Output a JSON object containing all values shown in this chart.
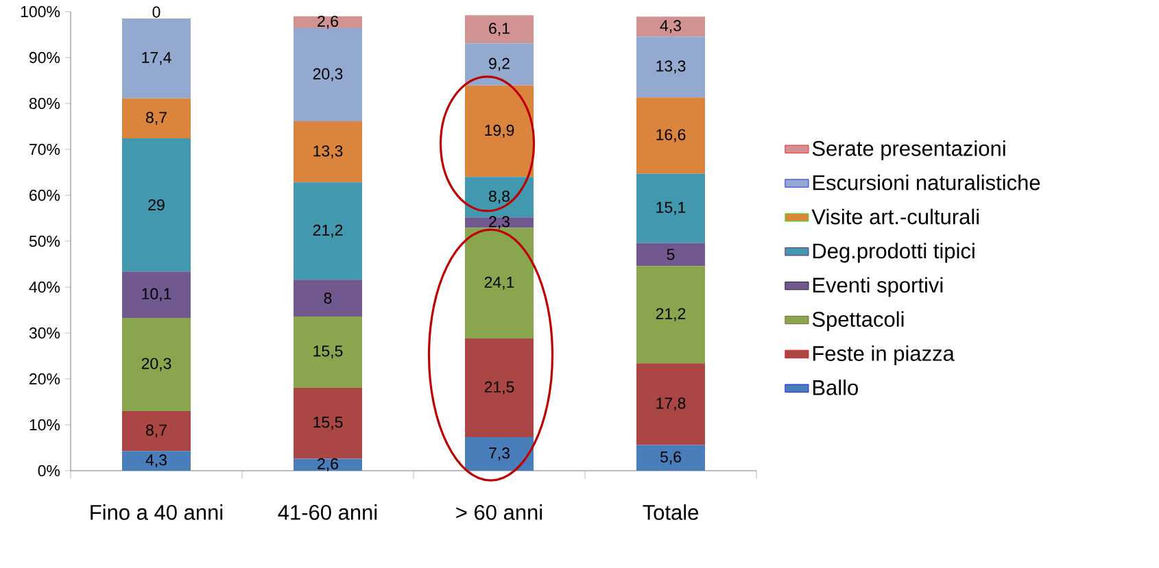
{
  "chart_data": {
    "type": "bar",
    "stacked": true,
    "categories": [
      "Fino a 40 anni",
      "41-60 anni",
      "> 60 anni",
      "Totale"
    ],
    "series": [
      {
        "name": "Ballo",
        "color": "#4a7ebb",
        "values": [
          4.3,
          2.6,
          7.3,
          5.6
        ],
        "value_labels": [
          "4,3",
          "2,6",
          "7,3",
          "5,6"
        ]
      },
      {
        "name": "Feste in piazza",
        "color": "#aa4643",
        "values": [
          8.7,
          15.5,
          21.5,
          17.8
        ],
        "value_labels": [
          "8,7",
          "15,5",
          "21,5",
          "17,8"
        ]
      },
      {
        "name": "Spettacoli",
        "color": "#89a54e",
        "values": [
          20.3,
          15.5,
          24.1,
          21.2
        ],
        "value_labels": [
          "20,3",
          "15,5",
          "24,1",
          "21,2"
        ]
      },
      {
        "name": "Eventi sportivi",
        "color": "#71588f",
        "values": [
          10.1,
          8,
          2.3,
          5
        ],
        "value_labels": [
          "10,1",
          "8",
          "2,3",
          "5"
        ]
      },
      {
        "name": "Deg.prodotti tipici",
        "color": "#4198af",
        "values": [
          29,
          21.2,
          8.8,
          15.1
        ],
        "value_labels": [
          "29",
          "21,2",
          "8,8",
          "15,1"
        ]
      },
      {
        "name": "Visite art.-culturali",
        "color": "#db843d",
        "values": [
          8.7,
          13.3,
          19.9,
          16.6
        ],
        "value_labels": [
          "8,7",
          "13,3",
          "19,9",
          "16,6"
        ]
      },
      {
        "name": "Escursioni naturalistiche",
        "color": "#93a9cf",
        "values": [
          17.4,
          20.3,
          9.2,
          13.3
        ],
        "value_labels": [
          "17,4",
          "20,3",
          "9,2",
          "13,3"
        ]
      },
      {
        "name": "Serate presentazioni",
        "color": "#d19392",
        "values": [
          0,
          2.6,
          6.1,
          4.3
        ],
        "value_labels": [
          "0",
          "2,6",
          "6,1",
          "4,3"
        ]
      }
    ],
    "ylim": [
      0,
      100
    ],
    "yticks": [
      {
        "value": 0,
        "label": "0%"
      },
      {
        "value": 10,
        "label": "10%"
      },
      {
        "value": 20,
        "label": "20%"
      },
      {
        "value": 30,
        "label": "30%"
      },
      {
        "value": 40,
        "label": "40%"
      },
      {
        "value": 50,
        "label": "50%"
      },
      {
        "value": 60,
        "label": "60%"
      },
      {
        "value": 70,
        "label": "70%"
      },
      {
        "value": 80,
        "label": "80%"
      },
      {
        "value": 90,
        "label": "90%"
      },
      {
        "value": 100,
        "label": "100%"
      }
    ],
    "legend": "right",
    "grid": false
  }
}
